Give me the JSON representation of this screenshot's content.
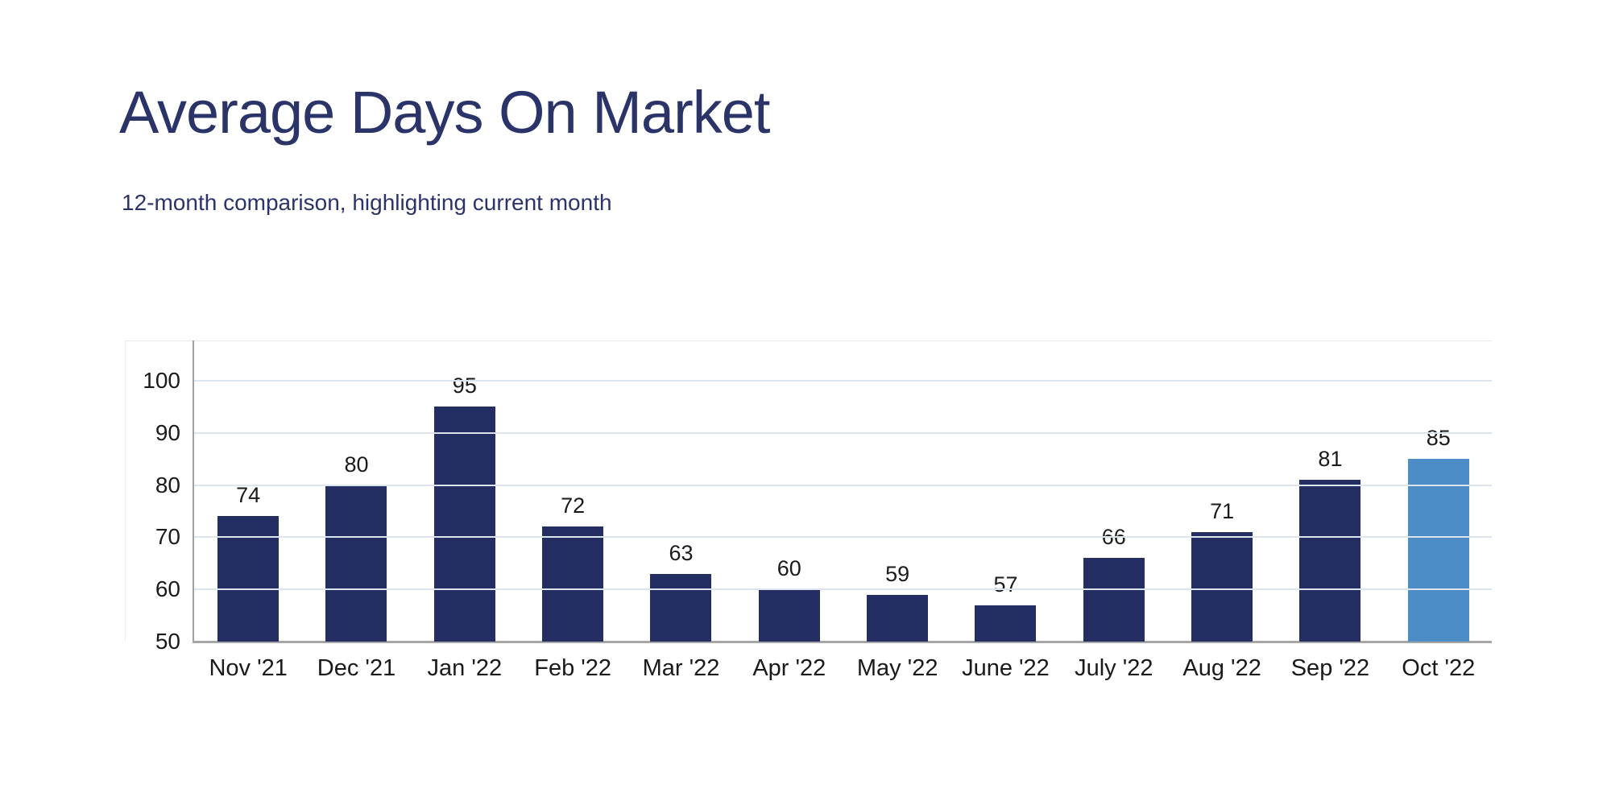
{
  "header": {
    "title": "Average Days On Market",
    "subtitle": "12-month comparison, highlighting current month"
  },
  "chart_data": {
    "type": "bar",
    "title": "Average Days On Market",
    "subtitle": "12-month comparison, highlighting current month",
    "categories": [
      "Nov '21",
      "Dec '21",
      "Jan '22",
      "Feb '22",
      "Mar '22",
      "Apr '22",
      "May '22",
      "June '22",
      "July '22",
      "Aug '22",
      "Sep '22",
      "Oct '22"
    ],
    "values": [
      74,
      80,
      95,
      72,
      63,
      60,
      59,
      57,
      66,
      71,
      81,
      85
    ],
    "value_labels_shown": true,
    "highlight_index": 11,
    "highlight_category": "Oct '22",
    "xlabel": "",
    "ylabel": "",
    "ylim": [
      50,
      100
    ],
    "yticks": [
      50,
      60,
      70,
      80,
      90,
      100
    ],
    "grid": "horizontal",
    "legend_position": "none"
  },
  "colors": {
    "title_text": "#2B3468",
    "bar": "#252E62",
    "bar_highlight": "#4C8DC7",
    "gridline": "#DCE4ED",
    "axis_line": "#9DA0A3",
    "baseline": "#A6A6A6",
    "label_text": "#1A1A1A",
    "background": "#FFFFFF"
  }
}
